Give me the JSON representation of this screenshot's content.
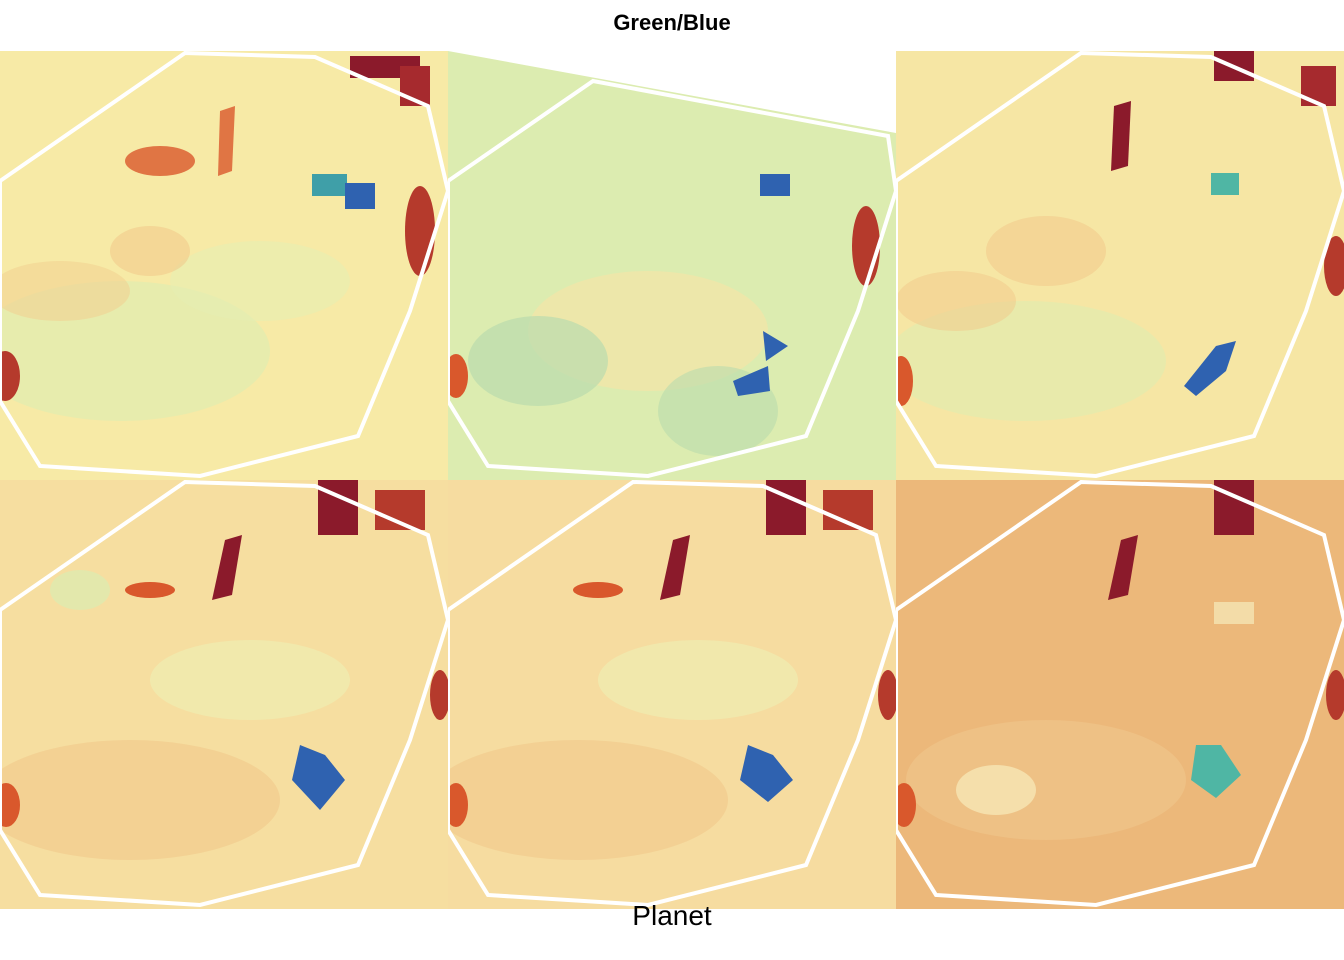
{
  "title": "Green/Blue",
  "xlabel": "Planet",
  "colors": {
    "background": "#ffffff",
    "outline": "#ffffff",
    "low": "#8b1a2b",
    "mid_red": "#d9582c",
    "mid_orange": "#f2a864",
    "mid": "#f9efa8",
    "mid_green": "#d6eda0",
    "high_teal": "#4fb6a4",
    "high": "#2f62b0"
  },
  "panels": [
    {
      "id": "r1c1",
      "base": "#f7eaa6"
    },
    {
      "id": "r1c2",
      "base": "#dcecb0"
    },
    {
      "id": "r1c3",
      "base": "#f6e6a4"
    },
    {
      "id": "r2c1",
      "base": "#f6dea0"
    },
    {
      "id": "r2c2",
      "base": "#f6dca0"
    },
    {
      "id": "r2c3",
      "base": "#ecb87a"
    }
  ]
}
